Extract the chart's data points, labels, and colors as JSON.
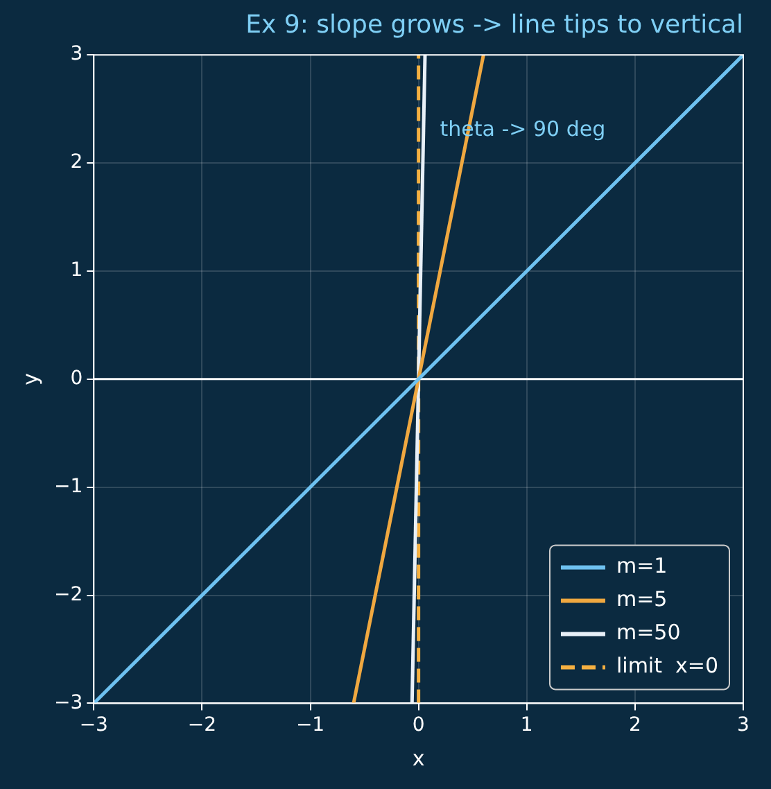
{
  "chart_data": {
    "type": "line",
    "title": "Ex 9: slope grows -> line tips to vertical",
    "xlabel": "x",
    "ylabel": "y",
    "series": [
      {
        "name": "m=1",
        "color": "#6ec1f0",
        "x": [
          -3,
          3
        ],
        "values": [
          -3,
          3
        ]
      },
      {
        "name": "m=5",
        "color": "#f0a840",
        "x": [
          -0.6,
          0.6
        ],
        "values": [
          -3,
          3
        ]
      },
      {
        "name": "m=50",
        "color": "#e8f0f8",
        "x": [
          -0.06,
          0.06
        ],
        "values": [
          -3,
          3
        ]
      },
      {
        "name": "limit  x=0",
        "color": "#f5b041",
        "x": [
          0,
          0
        ],
        "values": [
          -3,
          3
        ],
        "line_style": "dashed"
      }
    ],
    "xlim": [
      -3,
      3
    ],
    "ylim": [
      -3,
      3
    ],
    "xticks": [
      -3,
      -2,
      -1,
      0,
      1,
      2,
      3
    ],
    "yticks": [
      -3,
      -2,
      -1,
      0,
      1,
      2,
      3
    ],
    "ref_lines": [
      {
        "axis": "y",
        "value": 0,
        "color": "#ffffff"
      }
    ],
    "annotations": [
      "theta -> 90 deg"
    ],
    "grid": true,
    "legend": "bottom right",
    "marker": "none"
  }
}
